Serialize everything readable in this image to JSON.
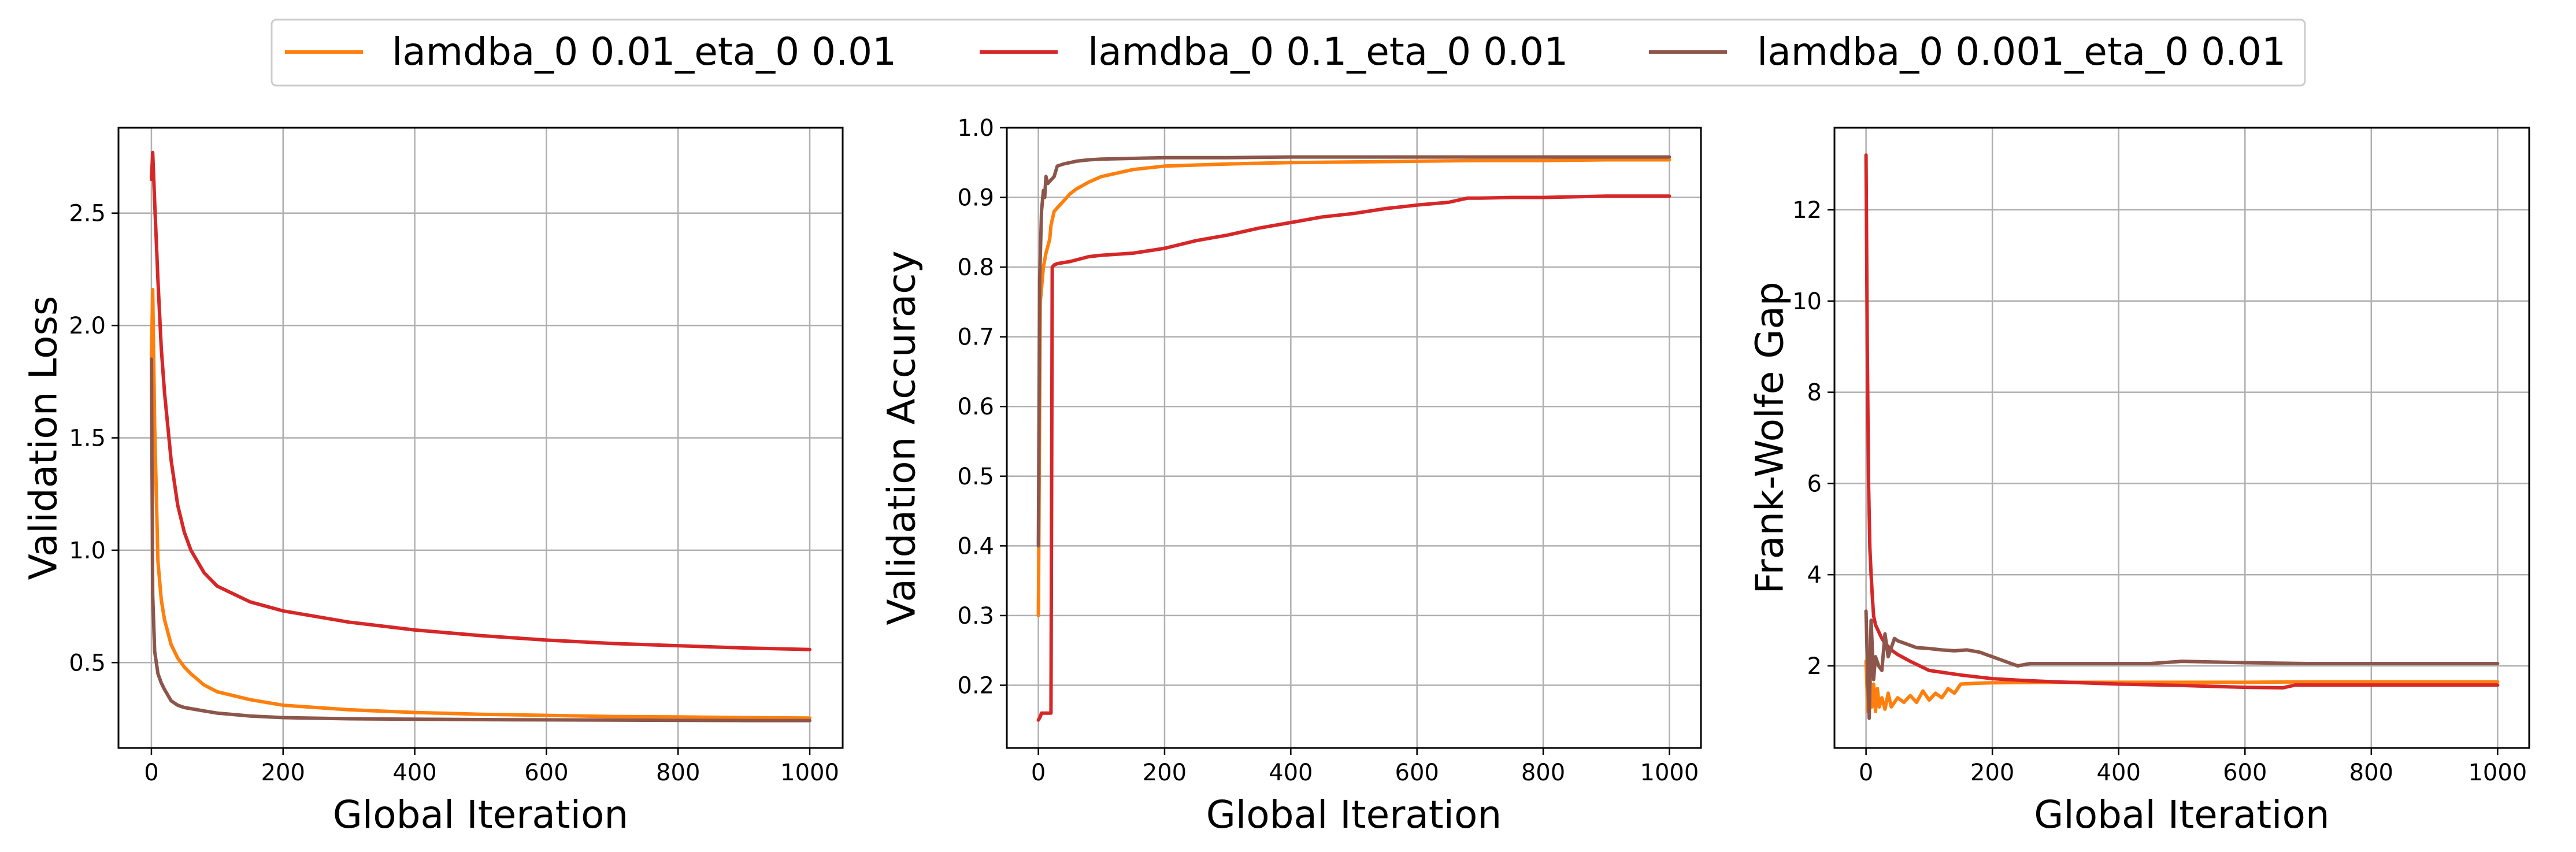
{
  "legend": {
    "entries": [
      {
        "label": "lamdba_0 0.01_eta_0 0.01",
        "color": "#ff7f0e"
      },
      {
        "label": "lamdba_0 0.1_eta_0 0.01",
        "color": "#d62728"
      },
      {
        "label": "lamdba_0 0.001_eta_0 0.01",
        "color": "#8c564b"
      }
    ]
  },
  "chart_data": [
    {
      "type": "line",
      "xlabel": "Global Iteration",
      "ylabel": "Validation Loss",
      "xlim": [
        -50,
        1050
      ],
      "ylim": [
        0.12,
        2.88
      ],
      "xticks": [
        0,
        200,
        400,
        600,
        800,
        1000
      ],
      "yticks": [
        0.5,
        1.0,
        1.5,
        2.0,
        2.5
      ],
      "ytick_labels": [
        "0.5",
        "1.0",
        "1.5",
        "2.0",
        "2.5"
      ],
      "grid": true,
      "series": [
        {
          "name": "lamdba_0 0.01_eta_0 0.01",
          "color": "#ff7f0e",
          "x": [
            0,
            2,
            5,
            10,
            15,
            20,
            30,
            40,
            50,
            60,
            80,
            100,
            150,
            200,
            300,
            400,
            500,
            600,
            700,
            800,
            900,
            1000
          ],
          "y": [
            1.85,
            2.16,
            1.55,
            0.95,
            0.78,
            0.69,
            0.58,
            0.52,
            0.48,
            0.45,
            0.4,
            0.37,
            0.335,
            0.31,
            0.29,
            0.278,
            0.27,
            0.265,
            0.26,
            0.258,
            0.255,
            0.253
          ]
        },
        {
          "name": "lamdba_0 0.1_eta_0 0.01",
          "color": "#d62728",
          "x": [
            0,
            2,
            5,
            10,
            15,
            20,
            30,
            40,
            50,
            60,
            80,
            100,
            150,
            200,
            300,
            400,
            500,
            600,
            700,
            800,
            900,
            1000
          ],
          "y": [
            2.65,
            2.77,
            2.55,
            2.2,
            1.9,
            1.7,
            1.4,
            1.2,
            1.08,
            1.0,
            0.9,
            0.84,
            0.77,
            0.73,
            0.68,
            0.645,
            0.62,
            0.6,
            0.585,
            0.575,
            0.565,
            0.558
          ]
        },
        {
          "name": "lamdba_0 0.001_eta_0 0.01",
          "color": "#8c564b",
          "x": [
            0,
            2,
            5,
            10,
            15,
            20,
            30,
            40,
            50,
            60,
            80,
            100,
            150,
            200,
            300,
            400,
            500,
            600,
            700,
            800,
            900,
            1000
          ],
          "y": [
            1.85,
            0.8,
            0.55,
            0.45,
            0.41,
            0.38,
            0.33,
            0.31,
            0.3,
            0.295,
            0.285,
            0.275,
            0.262,
            0.255,
            0.25,
            0.248,
            0.246,
            0.245,
            0.244,
            0.243,
            0.242,
            0.242
          ]
        }
      ]
    },
    {
      "type": "line",
      "xlabel": "Global Iteration",
      "ylabel": "Validation Accuracy",
      "xlim": [
        -50,
        1050
      ],
      "ylim": [
        0.11,
        1.0
      ],
      "xticks": [
        0,
        200,
        400,
        600,
        800,
        1000
      ],
      "yticks": [
        0.2,
        0.3,
        0.4,
        0.5,
        0.6,
        0.7,
        0.8,
        0.9,
        1.0
      ],
      "ytick_labels": [
        "0.2",
        "0.3",
        "0.4",
        "0.5",
        "0.6",
        "0.7",
        "0.8",
        "0.9",
        "1.0"
      ],
      "grid": true,
      "series": [
        {
          "name": "lamdba_0 0.01_eta_0 0.01",
          "color": "#ff7f0e",
          "x": [
            0,
            3,
            8,
            12,
            15,
            18,
            20,
            25,
            30,
            40,
            50,
            60,
            80,
            100,
            150,
            200,
            300,
            400,
            500,
            600,
            700,
            800,
            900,
            1000
          ],
          "y": [
            0.3,
            0.75,
            0.8,
            0.82,
            0.83,
            0.84,
            0.86,
            0.88,
            0.885,
            0.895,
            0.905,
            0.912,
            0.922,
            0.93,
            0.94,
            0.945,
            0.948,
            0.95,
            0.951,
            0.952,
            0.953,
            0.953,
            0.954,
            0.954
          ]
        },
        {
          "name": "lamdba_0 0.1_eta_0 0.01",
          "color": "#d62728",
          "x": [
            0,
            3,
            5,
            8,
            10,
            15,
            20,
            22,
            25,
            30,
            50,
            80,
            100,
            150,
            200,
            250,
            300,
            350,
            400,
            450,
            500,
            550,
            600,
            650,
            680,
            700,
            750,
            800,
            900,
            1000
          ],
          "y": [
            0.15,
            0.155,
            0.16,
            0.16,
            0.16,
            0.16,
            0.16,
            0.8,
            0.803,
            0.805,
            0.808,
            0.815,
            0.817,
            0.82,
            0.827,
            0.838,
            0.846,
            0.856,
            0.864,
            0.872,
            0.877,
            0.884,
            0.889,
            0.893,
            0.899,
            0.899,
            0.9,
            0.9,
            0.902,
            0.902
          ]
        },
        {
          "name": "lamdba_0 0.001_eta_0 0.01",
          "color": "#8c564b",
          "x": [
            0,
            2,
            5,
            8,
            10,
            12,
            15,
            20,
            25,
            30,
            40,
            50,
            60,
            80,
            100,
            150,
            200,
            300,
            400,
            500,
            600,
            700,
            800,
            900,
            1000
          ],
          "y": [
            0.4,
            0.78,
            0.88,
            0.91,
            0.9,
            0.93,
            0.92,
            0.925,
            0.93,
            0.945,
            0.948,
            0.95,
            0.952,
            0.954,
            0.955,
            0.956,
            0.957,
            0.957,
            0.958,
            0.958,
            0.958,
            0.958,
            0.958,
            0.958,
            0.958
          ]
        }
      ]
    },
    {
      "type": "line",
      "xlabel": "Global Iteration",
      "ylabel": "Frank-Wolfe Gap",
      "xlim": [
        -50,
        1050
      ],
      "ylim": [
        0.2,
        13.8
      ],
      "xticks": [
        0,
        200,
        400,
        600,
        800,
        1000
      ],
      "yticks": [
        2,
        4,
        6,
        8,
        10,
        12
      ],
      "ytick_labels": [
        "2",
        "4",
        "6",
        "8",
        "10",
        "12"
      ],
      "grid": true,
      "series": [
        {
          "name": "lamdba_0 0.01_eta_0 0.01",
          "color": "#ff7f0e",
          "x": [
            0,
            3,
            6,
            9,
            12,
            15,
            18,
            21,
            25,
            30,
            35,
            40,
            50,
            60,
            70,
            80,
            90,
            100,
            110,
            120,
            130,
            140,
            150,
            175,
            200,
            300,
            400,
            500,
            600,
            700,
            800,
            900,
            1000
          ],
          "y": [
            2.1,
            1.0,
            1.8,
            1.1,
            1.6,
            1.0,
            1.5,
            1.1,
            1.3,
            1.05,
            1.4,
            1.1,
            1.3,
            1.2,
            1.35,
            1.2,
            1.45,
            1.25,
            1.4,
            1.3,
            1.5,
            1.4,
            1.6,
            1.62,
            1.63,
            1.64,
            1.64,
            1.64,
            1.64,
            1.65,
            1.65,
            1.65,
            1.65
          ]
        },
        {
          "name": "lamdba_0 0.1_eta_0 0.01",
          "color": "#d62728",
          "x": [
            0,
            2,
            4,
            6,
            8,
            10,
            12,
            15,
            20,
            25,
            30,
            40,
            50,
            70,
            100,
            150,
            200,
            250,
            300,
            400,
            500,
            600,
            660,
            680,
            700,
            800,
            900,
            1000
          ],
          "y": [
            13.2,
            9.0,
            6.0,
            4.6,
            4.0,
            3.5,
            3.1,
            2.9,
            2.75,
            2.6,
            2.5,
            2.35,
            2.25,
            2.1,
            1.9,
            1.8,
            1.72,
            1.68,
            1.65,
            1.6,
            1.57,
            1.53,
            1.52,
            1.58,
            1.58,
            1.58,
            1.58,
            1.58
          ]
        },
        {
          "name": "lamdba_0 0.001_eta_0 0.01",
          "color": "#8c564b",
          "x": [
            0,
            3,
            5,
            8,
            12,
            15,
            20,
            25,
            30,
            35,
            40,
            45,
            50,
            60,
            70,
            80,
            100,
            120,
            140,
            160,
            180,
            200,
            220,
            240,
            260,
            300,
            400,
            450,
            500,
            600,
            700,
            800,
            900,
            1000
          ],
          "y": [
            3.2,
            1.6,
            0.85,
            3.0,
            1.7,
            2.2,
            2.0,
            1.9,
            2.7,
            2.2,
            2.4,
            2.6,
            2.55,
            2.5,
            2.45,
            2.4,
            2.38,
            2.35,
            2.33,
            2.35,
            2.3,
            2.2,
            2.1,
            2.0,
            2.05,
            2.05,
            2.05,
            2.05,
            2.1,
            2.07,
            2.05,
            2.05,
            2.05,
            2.05
          ]
        }
      ]
    }
  ]
}
